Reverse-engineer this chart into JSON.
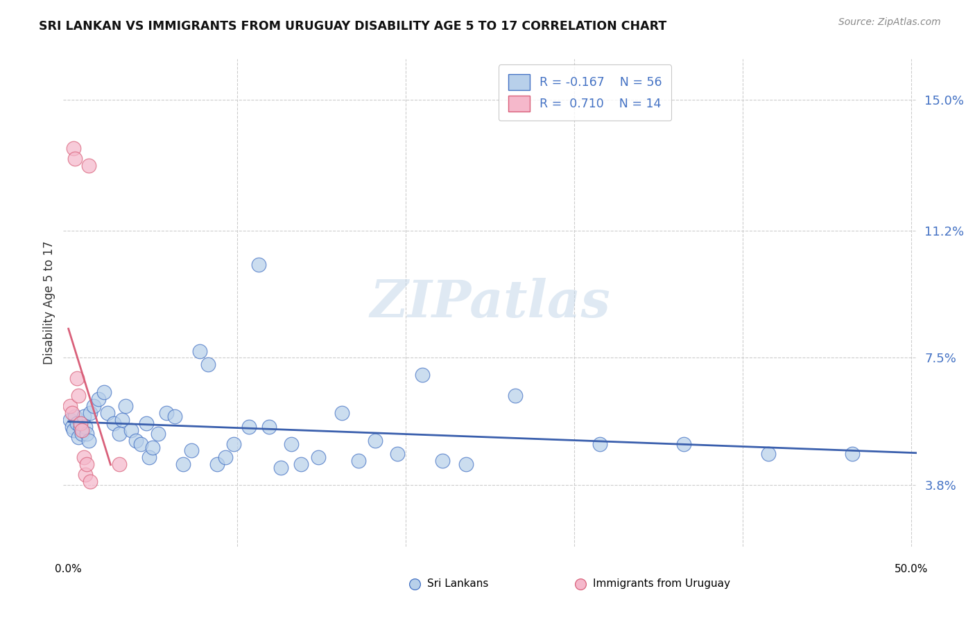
{
  "title": "SRI LANKAN VS IMMIGRANTS FROM URUGUAY DISABILITY AGE 5 TO 17 CORRELATION CHART",
  "source": "Source: ZipAtlas.com",
  "ylabel": "Disability Age 5 to 17",
  "yticks": [
    0.038,
    0.075,
    0.112,
    0.15
  ],
  "ytick_labels": [
    "3.8%",
    "7.5%",
    "11.2%",
    "15.0%"
  ],
  "xlim": [
    -0.003,
    0.503
  ],
  "ylim": [
    0.02,
    0.162
  ],
  "x_label_min": "0.0%",
  "x_label_max": "50.0%",
  "blue_r": "-0.167",
  "blue_n": "56",
  "pink_r": "0.710",
  "pink_n": "14",
  "blue_fill": "#b8d0ea",
  "pink_fill": "#f5b8cb",
  "blue_edge": "#4472c4",
  "pink_edge": "#d9607a",
  "blue_line": "#3a5fad",
  "pink_line": "#d9607a",
  "blue_scatter": [
    [
      0.001,
      0.057
    ],
    [
      0.002,
      0.055
    ],
    [
      0.003,
      0.054
    ],
    [
      0.004,
      0.058
    ],
    [
      0.005,
      0.056
    ],
    [
      0.006,
      0.052
    ],
    [
      0.007,
      0.055
    ],
    [
      0.008,
      0.053
    ],
    [
      0.009,
      0.058
    ],
    [
      0.01,
      0.055
    ],
    [
      0.011,
      0.053
    ],
    [
      0.012,
      0.051
    ],
    [
      0.013,
      0.059
    ],
    [
      0.015,
      0.061
    ],
    [
      0.018,
      0.063
    ],
    [
      0.021,
      0.065
    ],
    [
      0.023,
      0.059
    ],
    [
      0.027,
      0.056
    ],
    [
      0.03,
      0.053
    ],
    [
      0.032,
      0.057
    ],
    [
      0.034,
      0.061
    ],
    [
      0.037,
      0.054
    ],
    [
      0.04,
      0.051
    ],
    [
      0.043,
      0.05
    ],
    [
      0.046,
      0.056
    ],
    [
      0.048,
      0.046
    ],
    [
      0.05,
      0.049
    ],
    [
      0.053,
      0.053
    ],
    [
      0.058,
      0.059
    ],
    [
      0.063,
      0.058
    ],
    [
      0.068,
      0.044
    ],
    [
      0.073,
      0.048
    ],
    [
      0.078,
      0.077
    ],
    [
      0.083,
      0.073
    ],
    [
      0.088,
      0.044
    ],
    [
      0.093,
      0.046
    ],
    [
      0.098,
      0.05
    ],
    [
      0.107,
      0.055
    ],
    [
      0.113,
      0.102
    ],
    [
      0.119,
      0.055
    ],
    [
      0.126,
      0.043
    ],
    [
      0.132,
      0.05
    ],
    [
      0.138,
      0.044
    ],
    [
      0.148,
      0.046
    ],
    [
      0.162,
      0.059
    ],
    [
      0.172,
      0.045
    ],
    [
      0.182,
      0.051
    ],
    [
      0.195,
      0.047
    ],
    [
      0.21,
      0.07
    ],
    [
      0.222,
      0.045
    ],
    [
      0.236,
      0.044
    ],
    [
      0.265,
      0.064
    ],
    [
      0.315,
      0.05
    ],
    [
      0.365,
      0.05
    ],
    [
      0.415,
      0.047
    ],
    [
      0.465,
      0.047
    ]
  ],
  "pink_scatter": [
    [
      0.001,
      0.061
    ],
    [
      0.002,
      0.059
    ],
    [
      0.003,
      0.136
    ],
    [
      0.004,
      0.133
    ],
    [
      0.005,
      0.069
    ],
    [
      0.006,
      0.064
    ],
    [
      0.007,
      0.056
    ],
    [
      0.008,
      0.054
    ],
    [
      0.009,
      0.046
    ],
    [
      0.01,
      0.041
    ],
    [
      0.011,
      0.044
    ],
    [
      0.012,
      0.131
    ],
    [
      0.013,
      0.039
    ],
    [
      0.03,
      0.044
    ]
  ],
  "watermark_text": "ZIPatlas",
  "legend_label_blue": "Sri Lankans",
  "legend_label_pink": "Immigrants from Uruguay",
  "background_color": "#ffffff",
  "grid_color": "#cccccc",
  "title_color": "#111111",
  "source_color": "#888888",
  "ytick_color": "#4472c4"
}
